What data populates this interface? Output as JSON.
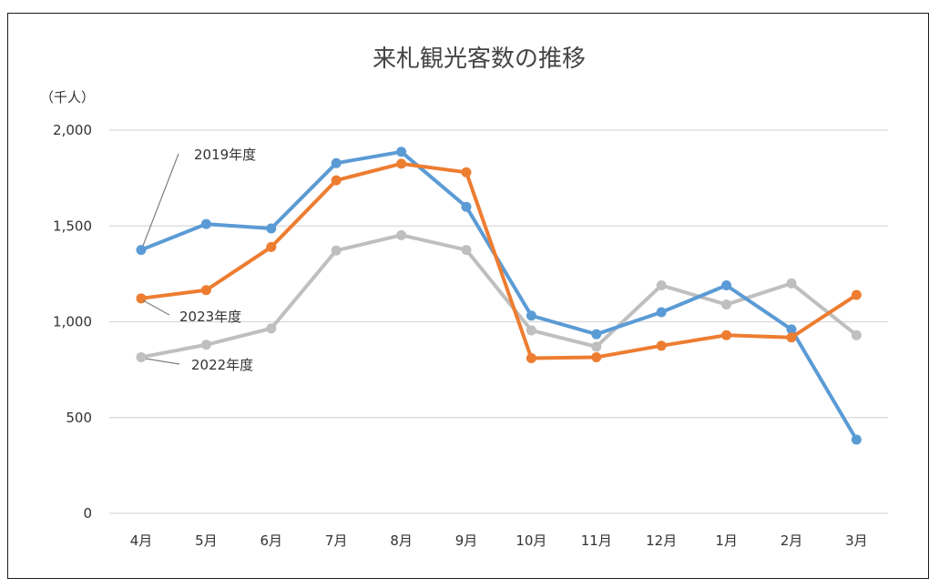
{
  "chart_data": {
    "type": "line",
    "title": "来札観光客数の推移",
    "unit_label": "（千人）",
    "xlabel": "",
    "ylabel": "",
    "categories": [
      "4月",
      "5月",
      "6月",
      "7月",
      "8月",
      "9月",
      "10月",
      "11月",
      "12月",
      "1月",
      "2月",
      "3月"
    ],
    "ylim": [
      0,
      2000
    ],
    "yticks": [
      0,
      500,
      1000,
      1500,
      2000
    ],
    "ytick_labels": [
      "0",
      "500",
      "1,000",
      "1,500",
      "2,000"
    ],
    "grid": true,
    "legend": "none (series labeled by callouts)",
    "series": [
      {
        "name": "2019年度",
        "color": "#5b9bd5",
        "values": [
          1375,
          1510,
          1487,
          1828,
          1887,
          1600,
          1032,
          935,
          1050,
          1190,
          960,
          385
        ]
      },
      {
        "name": "2023年度",
        "color": "#ed7d31",
        "values": [
          1122,
          1165,
          1390,
          1738,
          1825,
          1780,
          810,
          815,
          875,
          930,
          918,
          1140
        ]
      },
      {
        "name": "2022年度",
        "color": "#bfbfbf",
        "values": [
          815,
          880,
          965,
          1372,
          1452,
          1375,
          955,
          870,
          1190,
          1090,
          1200,
          930
        ]
      }
    ],
    "annotations": [
      "2019年度",
      "2023年度",
      "2022年度"
    ]
  }
}
